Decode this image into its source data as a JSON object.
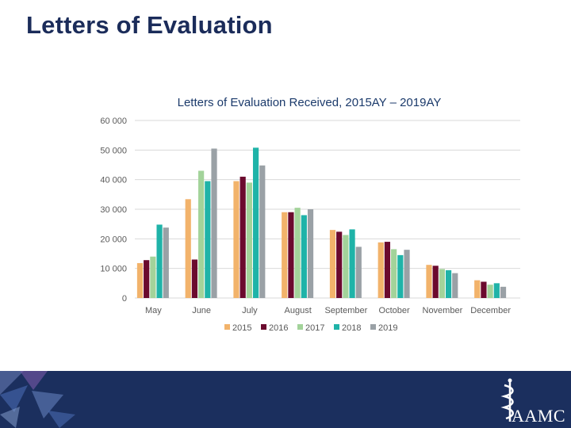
{
  "slide": {
    "title": "Letters of Evaluation"
  },
  "colors": {
    "title": "#1b2c5a",
    "footer": "#1b2f5e",
    "series": [
      "#f2b36b",
      "#6b0a2e",
      "#a3d39a",
      "#1fb3a8",
      "#9aa1a6"
    ]
  },
  "chart_data": {
    "type": "bar",
    "title": "Letters of Evaluation Received, 2015AY – 2019AY",
    "categories": [
      "May",
      "June",
      "July",
      "August",
      "September",
      "October",
      "November",
      "December"
    ],
    "ylim": [
      0,
      60000
    ],
    "yticks": [
      0,
      10000,
      20000,
      30000,
      40000,
      50000,
      60000
    ],
    "ytick_labels": [
      "0",
      "10 000",
      "20 000",
      "30 000",
      "40 000",
      "50 000",
      "60 000"
    ],
    "legend_position": "bottom",
    "series": [
      {
        "name": "2015",
        "values": [
          11800,
          33400,
          39500,
          29000,
          23000,
          18800,
          11200,
          6000
        ]
      },
      {
        "name": "2016",
        "values": [
          12800,
          13000,
          41000,
          29000,
          22400,
          19000,
          10900,
          5500
        ]
      },
      {
        "name": "2017",
        "values": [
          14000,
          43000,
          39000,
          30500,
          21300,
          16500,
          9800,
          4500
        ]
      },
      {
        "name": "2018",
        "values": [
          24800,
          39500,
          50800,
          28000,
          23200,
          14500,
          9400,
          5000
        ]
      },
      {
        "name": "2019",
        "values": [
          23800,
          50500,
          44800,
          30000,
          17300,
          16300,
          8400,
          3800
        ]
      }
    ]
  },
  "logo": {
    "text": "AAMC"
  }
}
